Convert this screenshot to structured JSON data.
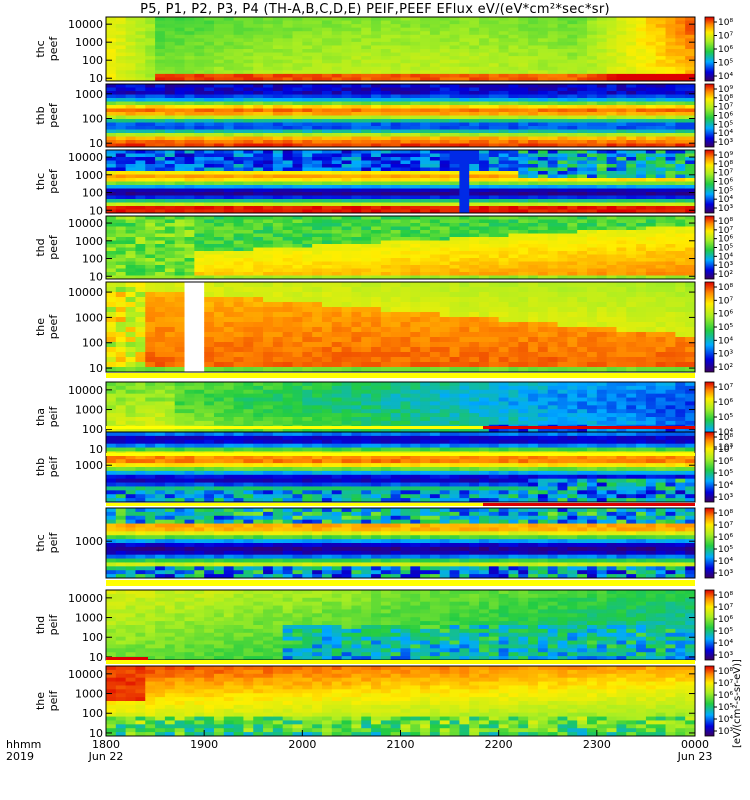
{
  "title": "P5, P1, P2, P3, P4 (TH-A,B,C,D,E) PEIF,PEEF EFlux eV/(eV*cm²*sec*sr)",
  "colorbar_units": "[eV/(cm²-s-sr-eV)]",
  "time_axis": {
    "row_label_1": "hhmm",
    "row_label_2": "2019",
    "ticks": [
      "1800",
      "1900",
      "2000",
      "2100",
      "2200",
      "2300",
      "0000"
    ],
    "date_labels": [
      {
        "at": "1800",
        "text": "Jun 22"
      },
      {
        "at": "0000",
        "text": "Jun 23"
      }
    ]
  },
  "chart_data": [
    {
      "type": "heatmap",
      "probe": "thc",
      "instrument": "peef",
      "ylabel": [
        "thc",
        "peef"
      ],
      "y_ticks": [
        "10000",
        "1000",
        "100",
        "10"
      ],
      "y_scale": "log",
      "ylim": [
        7,
        25000
      ],
      "colorbar_ticks": [
        "10⁸",
        "10⁷",
        "10⁶",
        "10⁵",
        "10⁴"
      ],
      "pattern": "sheath"
    },
    {
      "type": "heatmap",
      "probe": "thb",
      "instrument": "peef",
      "ylabel": [
        "thb",
        "peef"
      ],
      "y_ticks": [
        "1000",
        "100",
        "10"
      ],
      "y_scale": "log",
      "ylim": [
        7,
        2500
      ],
      "colorbar_ticks": [
        "10⁹",
        "10⁸",
        "10⁷",
        "10⁶",
        "10⁵",
        "10⁴",
        "10³"
      ],
      "pattern": "bands"
    },
    {
      "type": "heatmap",
      "probe": "thc",
      "instrument": "peef",
      "ylabel": [
        "thc",
        "peef"
      ],
      "y_ticks": [
        "10000",
        "1000",
        "100",
        "10"
      ],
      "y_scale": "log",
      "ylim": [
        7,
        25000
      ],
      "colorbar_ticks": [
        "10⁹",
        "10⁸",
        "10⁷",
        "10⁶",
        "10⁵",
        "10⁴",
        "10³"
      ],
      "pattern": "bands_gap"
    },
    {
      "type": "heatmap",
      "probe": "thd",
      "instrument": "peef",
      "ylabel": [
        "thd",
        "peef"
      ],
      "y_ticks": [
        "10000",
        "1000",
        "100",
        "10"
      ],
      "y_scale": "log",
      "ylim": [
        7,
        25000
      ],
      "colorbar_ticks": [
        "10⁸",
        "10⁷",
        "10⁶",
        "10⁵",
        "10⁴",
        "10³",
        "10²"
      ],
      "pattern": "rising"
    },
    {
      "type": "heatmap",
      "probe": "the",
      "instrument": "peef",
      "ylabel": [
        "the",
        "peef"
      ],
      "y_ticks": [
        "10000",
        "1000",
        "100",
        "10"
      ],
      "y_scale": "log",
      "ylim": [
        7,
        25000
      ],
      "colorbar_ticks": [
        "10⁸",
        "10⁷",
        "10⁶",
        "10⁵",
        "10⁴",
        "10³",
        "10²"
      ],
      "pattern": "hot"
    },
    {
      "type": "heatmap",
      "probe": "tha",
      "instrument": "peif",
      "ylabel": [
        "tha",
        "peif"
      ],
      "y_ticks": [
        "10000",
        "1000",
        "100",
        "10"
      ],
      "y_scale": "log",
      "ylim": [
        7,
        25000
      ],
      "colorbar_ticks": [
        "10⁷",
        "10⁶",
        "10⁵",
        "10⁴",
        "10³"
      ],
      "pattern": "ion_fade"
    },
    {
      "type": "heatmap",
      "probe": "thb",
      "instrument": "peif",
      "ylabel": [
        "thb",
        "peif"
      ],
      "y_ticks": [
        "1000"
      ],
      "y_scale": "log",
      "ylim": [
        100,
        8000
      ],
      "colorbar_ticks": [
        "10⁸",
        "10⁷",
        "10⁶",
        "10⁵",
        "10⁴",
        "10³"
      ],
      "pattern": "ion_bands"
    },
    {
      "type": "heatmap",
      "probe": "thc",
      "instrument": "peif",
      "ylabel": [
        "thc",
        "peif"
      ],
      "y_ticks": [
        "1000"
      ],
      "y_scale": "log",
      "ylim": [
        100,
        8000
      ],
      "colorbar_ticks": [
        "10⁸",
        "10⁷",
        "10⁶",
        "10⁵",
        "10⁴",
        "10³"
      ],
      "pattern": "ion_bands_gap"
    },
    {
      "type": "heatmap",
      "probe": "thd",
      "instrument": "peif",
      "ylabel": [
        "thd",
        "peif"
      ],
      "y_ticks": [
        "10000",
        "1000",
        "100",
        "10"
      ],
      "y_scale": "log",
      "ylim": [
        7,
        25000
      ],
      "colorbar_ticks": [
        "10⁸",
        "10⁷",
        "10⁶",
        "10⁵",
        "10⁴",
        "10³"
      ],
      "pattern": "ion_fade2"
    },
    {
      "type": "heatmap",
      "probe": "the",
      "instrument": "peif",
      "ylabel": [
        "the",
        "peif"
      ],
      "y_ticks": [
        "10000",
        "1000",
        "100",
        "10"
      ],
      "y_scale": "log",
      "ylim": [
        7,
        25000
      ],
      "colorbar_ticks": [
        "10⁸",
        "10⁷",
        "10⁶",
        "10⁵",
        "10⁴",
        "10³"
      ],
      "pattern": "ion_hot"
    }
  ],
  "colors": {
    "red": "#dd0000",
    "yellow": "#ffff00",
    "green": "#33dd22",
    "blue": "#0000dd",
    "purple": "#6a0a9a"
  }
}
